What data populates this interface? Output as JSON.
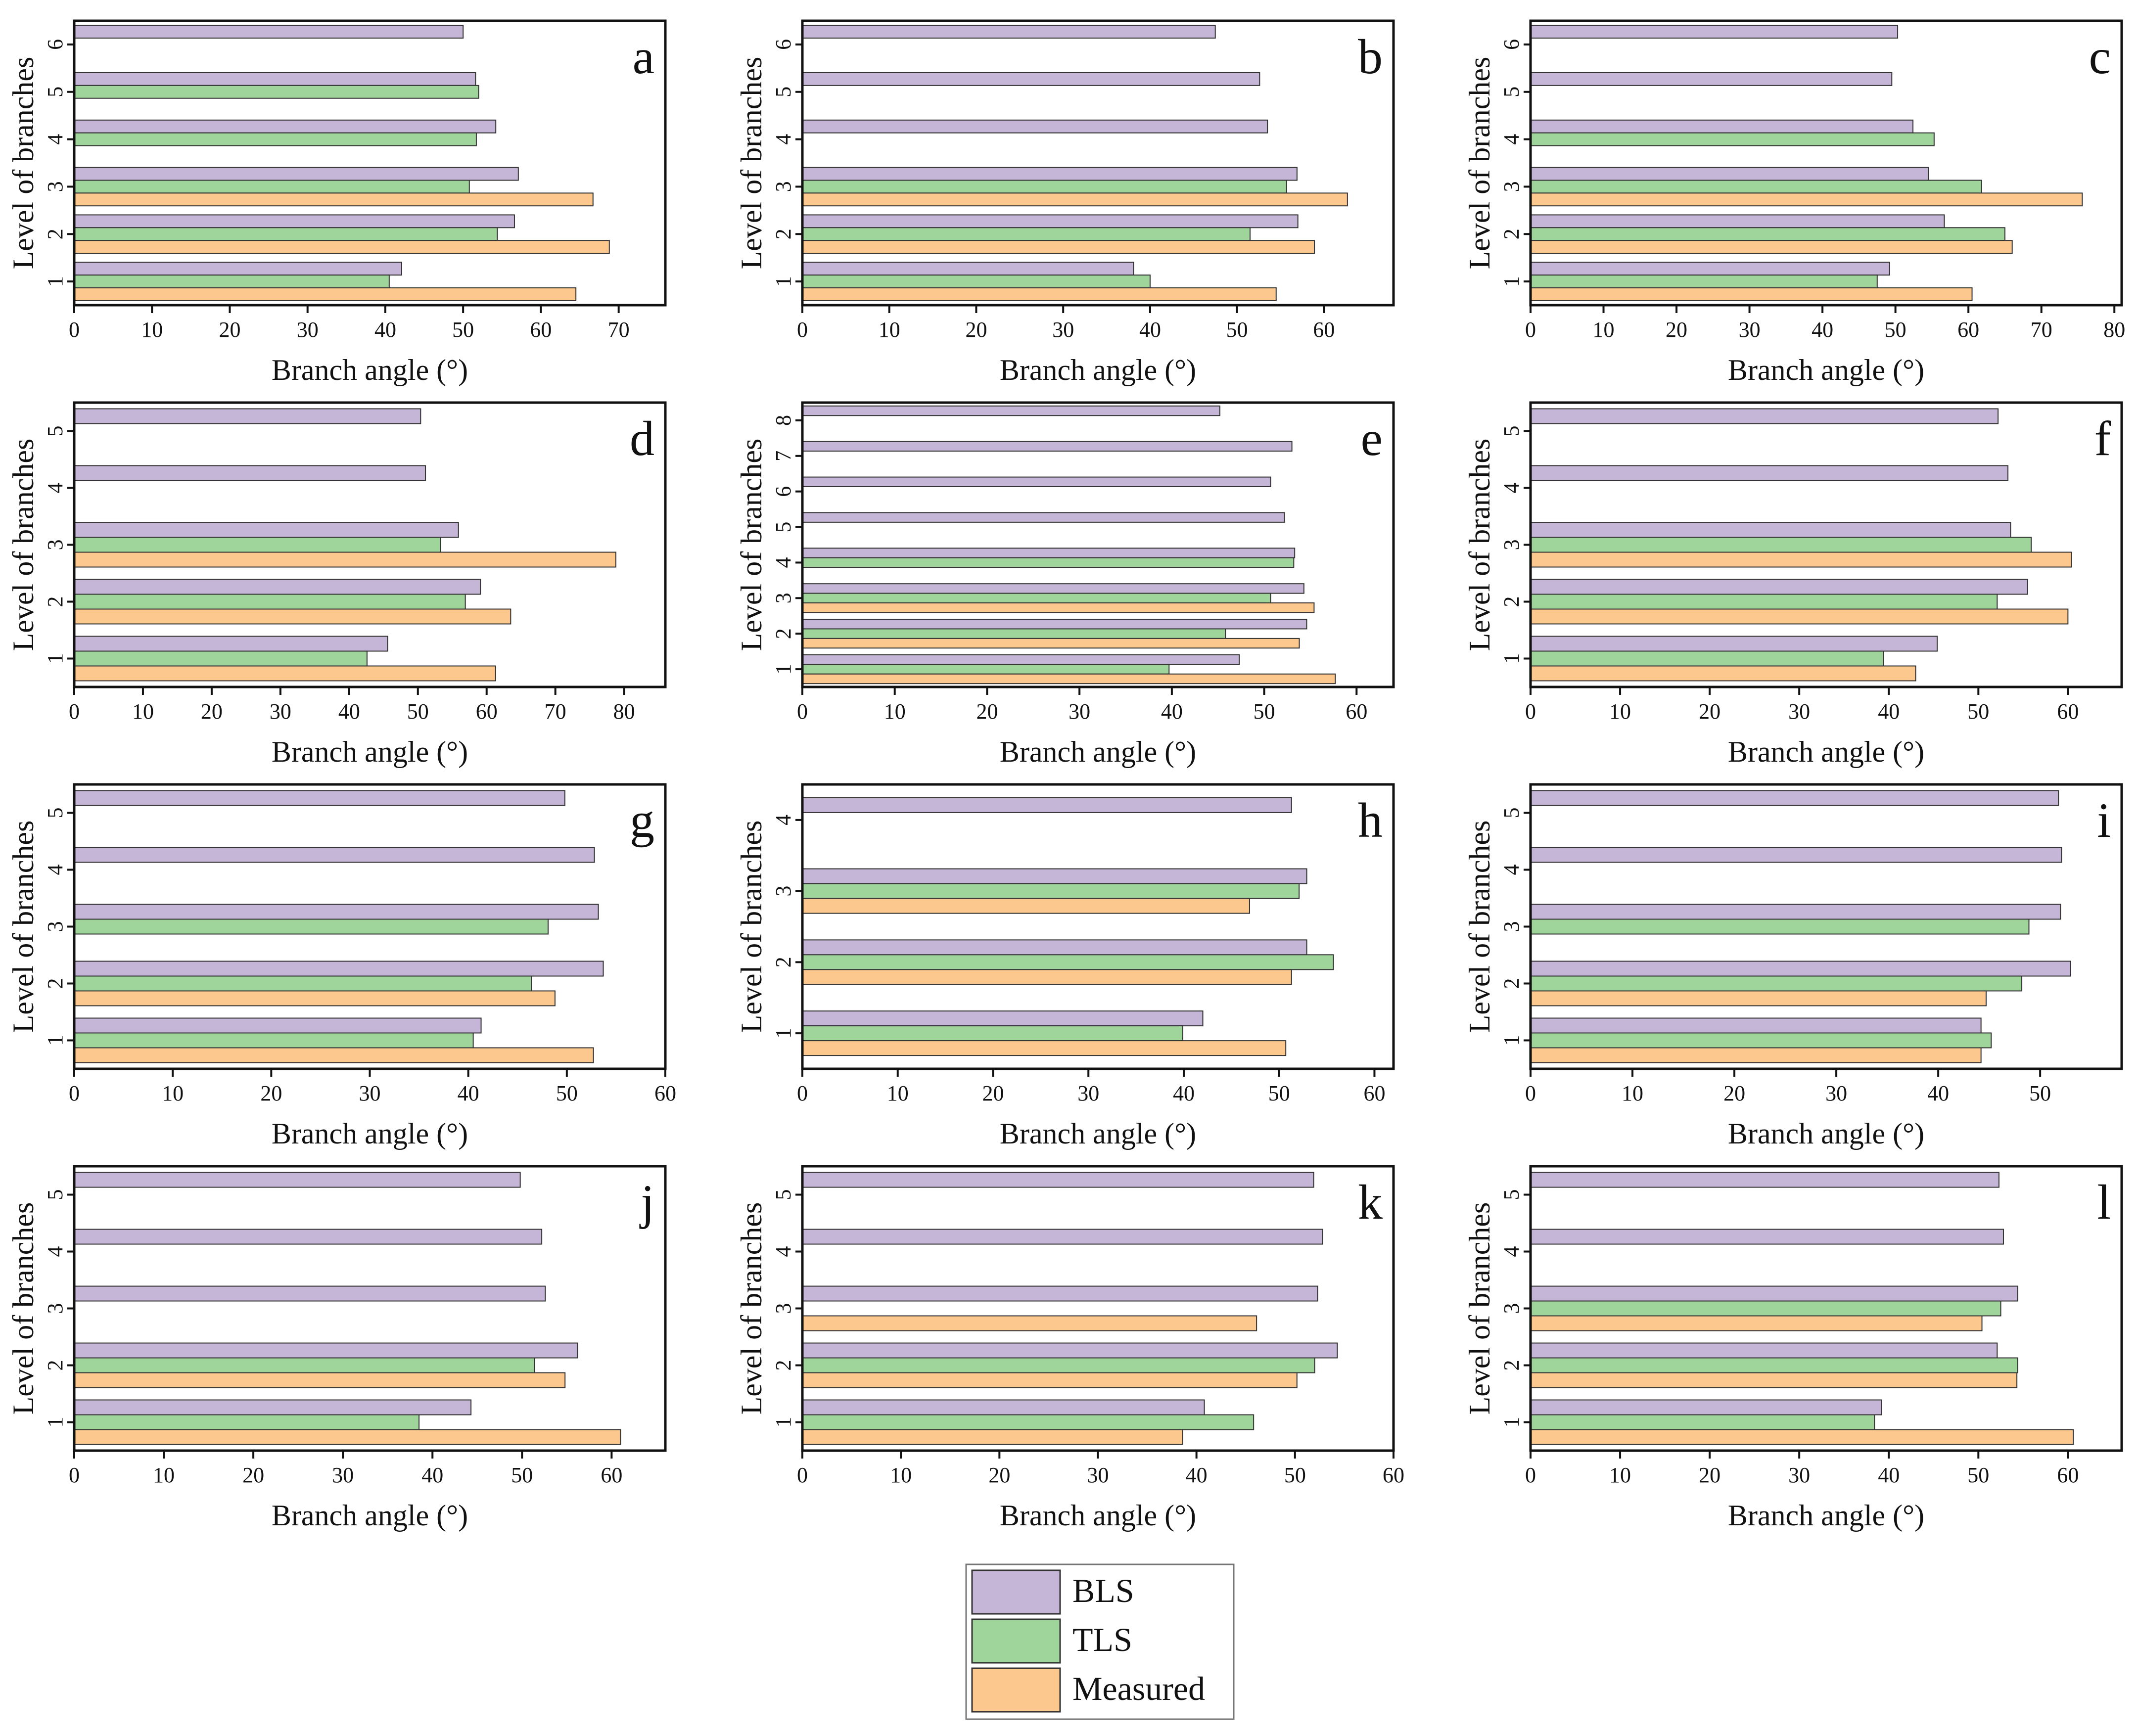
{
  "colors": {
    "BLS": "#c5b5d6",
    "TLS": "#9fd49b",
    "Measured": "#fcc88d",
    "axis": "#111111",
    "bar_edge": "#333333"
  },
  "legend": {
    "items": [
      {
        "key": "BLS",
        "label": "BLS"
      },
      {
        "key": "TLS",
        "label": "TLS"
      },
      {
        "key": "Measured",
        "label": "Measured"
      }
    ]
  },
  "chart_data": [
    {
      "type": "bar",
      "orientation": "horizontal",
      "panel": "a",
      "xlabel": "Branch angle (°)",
      "ylabel": "Level of branches",
      "xlim": [
        0,
        76
      ],
      "xticks": [
        0,
        10,
        20,
        30,
        40,
        50,
        60,
        70
      ],
      "categories": [
        "1",
        "2",
        "3",
        "4",
        "5",
        "6"
      ],
      "series": [
        {
          "name": "BLS",
          "values": [
            42.1,
            56.6,
            57.1,
            54.2,
            51.6,
            50.0
          ]
        },
        {
          "name": "TLS",
          "values": [
            40.5,
            54.4,
            50.8,
            51.7,
            52.0,
            null
          ]
        },
        {
          "name": "Measured",
          "values": [
            64.5,
            68.8,
            66.7,
            null,
            null,
            null
          ]
        }
      ]
    },
    {
      "type": "bar",
      "orientation": "horizontal",
      "panel": "b",
      "xlabel": "Branch angle (°)",
      "ylabel": "Level of branches",
      "xlim": [
        0,
        68
      ],
      "xticks": [
        0,
        10,
        20,
        30,
        40,
        50,
        60
      ],
      "categories": [
        "1",
        "2",
        "3",
        "4",
        "5",
        "6"
      ],
      "series": [
        {
          "name": "BLS",
          "values": [
            38.1,
            57.0,
            56.9,
            53.5,
            52.6,
            47.5
          ]
        },
        {
          "name": "TLS",
          "values": [
            40.0,
            51.5,
            55.7,
            null,
            null,
            null
          ]
        },
        {
          "name": "Measured",
          "values": [
            54.5,
            58.9,
            62.7,
            null,
            null,
            null
          ]
        }
      ]
    },
    {
      "type": "bar",
      "orientation": "horizontal",
      "panel": "c",
      "xlabel": "Branch angle (°)",
      "ylabel": "Level of branches",
      "xlim": [
        0,
        81
      ],
      "xticks": [
        0,
        10,
        20,
        30,
        40,
        50,
        60,
        70,
        80
      ],
      "categories": [
        "1",
        "2",
        "3",
        "4",
        "5",
        "6"
      ],
      "series": [
        {
          "name": "BLS",
          "values": [
            49.2,
            56.7,
            54.5,
            52.4,
            49.5,
            50.3
          ]
        },
        {
          "name": "TLS",
          "values": [
            47.5,
            65.0,
            61.8,
            55.3,
            null,
            null
          ]
        },
        {
          "name": "Measured",
          "values": [
            60.5,
            66.0,
            75.6,
            null,
            null,
            null
          ]
        }
      ]
    },
    {
      "type": "bar",
      "orientation": "horizontal",
      "panel": "d",
      "xlabel": "Branch angle (°)",
      "ylabel": "Level of branches",
      "xlim": [
        0,
        86
      ],
      "xticks": [
        0,
        10,
        20,
        30,
        40,
        50,
        60,
        70,
        80
      ],
      "categories": [
        "1",
        "2",
        "3",
        "4",
        "5"
      ],
      "series": [
        {
          "name": "BLS",
          "values": [
            45.6,
            59.1,
            55.9,
            51.1,
            50.4
          ]
        },
        {
          "name": "TLS",
          "values": [
            42.6,
            56.9,
            53.3,
            null,
            null
          ]
        },
        {
          "name": "Measured",
          "values": [
            61.3,
            63.5,
            78.8,
            null,
            null
          ]
        }
      ]
    },
    {
      "type": "bar",
      "orientation": "horizontal",
      "panel": "e",
      "xlabel": "Branch angle (°)",
      "ylabel": "Level of branches",
      "xlim": [
        0,
        64
      ],
      "xticks": [
        0,
        10,
        20,
        30,
        40,
        50,
        60
      ],
      "categories": [
        "1",
        "2",
        "3",
        "4",
        "5",
        "6",
        "7",
        "8"
      ],
      "series": [
        {
          "name": "BLS",
          "values": [
            47.3,
            54.6,
            54.3,
            53.3,
            52.2,
            50.7,
            53.0,
            45.2
          ]
        },
        {
          "name": "TLS",
          "values": [
            39.7,
            45.8,
            50.7,
            53.2,
            null,
            null,
            null,
            null
          ]
        },
        {
          "name": "Measured",
          "values": [
            57.7,
            53.8,
            55.4,
            null,
            null,
            null,
            null,
            null
          ]
        }
      ]
    },
    {
      "type": "bar",
      "orientation": "horizontal",
      "panel": "f",
      "xlabel": "Branch angle (°)",
      "ylabel": "Level of branches",
      "xlim": [
        0,
        66
      ],
      "xticks": [
        0,
        10,
        20,
        30,
        40,
        50,
        60
      ],
      "categories": [
        "1",
        "2",
        "3",
        "4",
        "5"
      ],
      "series": [
        {
          "name": "BLS",
          "values": [
            45.4,
            55.5,
            53.6,
            53.3,
            52.2
          ]
        },
        {
          "name": "TLS",
          "values": [
            39.4,
            52.1,
            55.9,
            null,
            null
          ]
        },
        {
          "name": "Measured",
          "values": [
            43.0,
            60.0,
            60.4,
            null,
            null
          ]
        }
      ]
    },
    {
      "type": "bar",
      "orientation": "horizontal",
      "panel": "g",
      "xlabel": "Branch angle (°)",
      "ylabel": "Level of branches",
      "xlim": [
        0,
        60
      ],
      "xticks": [
        0,
        10,
        20,
        30,
        40,
        50,
        60
      ],
      "categories": [
        "1",
        "2",
        "3",
        "4",
        "5"
      ],
      "series": [
        {
          "name": "BLS",
          "values": [
            41.3,
            53.7,
            53.2,
            52.8,
            49.8
          ]
        },
        {
          "name": "TLS",
          "values": [
            40.5,
            46.4,
            48.1,
            null,
            null
          ]
        },
        {
          "name": "Measured",
          "values": [
            52.7,
            48.8,
            null,
            null,
            null
          ]
        }
      ]
    },
    {
      "type": "bar",
      "orientation": "horizontal",
      "panel": "h",
      "xlabel": "Branch angle (°)",
      "ylabel": "Level of branches",
      "xlim": [
        0,
        62
      ],
      "xticks": [
        0,
        10,
        20,
        30,
        40,
        50,
        60
      ],
      "categories": [
        "1",
        "2",
        "3",
        "4"
      ],
      "series": [
        {
          "name": "BLS",
          "values": [
            42.0,
            52.9,
            52.9,
            51.3
          ]
        },
        {
          "name": "TLS",
          "values": [
            39.9,
            55.7,
            52.1,
            null
          ]
        },
        {
          "name": "Measured",
          "values": [
            50.7,
            51.3,
            46.9,
            null
          ]
        }
      ]
    },
    {
      "type": "bar",
      "orientation": "horizontal",
      "panel": "i",
      "xlabel": "Branch angle (°)",
      "ylabel": "Level of branches",
      "xlim": [
        0,
        58
      ],
      "xticks": [
        0,
        10,
        20,
        30,
        40,
        50
      ],
      "categories": [
        "1",
        "2",
        "3",
        "4",
        "5"
      ],
      "series": [
        {
          "name": "BLS",
          "values": [
            44.2,
            53.0,
            52.0,
            52.1,
            51.8
          ]
        },
        {
          "name": "TLS",
          "values": [
            45.2,
            48.2,
            48.9,
            null,
            null
          ]
        },
        {
          "name": "Measured",
          "values": [
            44.2,
            44.7,
            null,
            null,
            null
          ]
        }
      ]
    },
    {
      "type": "bar",
      "orientation": "horizontal",
      "panel": "j",
      "xlabel": "Branch angle (°)",
      "ylabel": "Level of branches",
      "xlim": [
        0,
        66
      ],
      "xticks": [
        0,
        10,
        20,
        30,
        40,
        50,
        60
      ],
      "categories": [
        "1",
        "2",
        "3",
        "4",
        "5"
      ],
      "series": [
        {
          "name": "BLS",
          "values": [
            44.3,
            56.2,
            52.6,
            52.2,
            49.8
          ]
        },
        {
          "name": "TLS",
          "values": [
            38.5,
            51.4,
            null,
            null,
            null
          ]
        },
        {
          "name": "Measured",
          "values": [
            61.0,
            54.8,
            null,
            null,
            null
          ]
        }
      ]
    },
    {
      "type": "bar",
      "orientation": "horizontal",
      "panel": "k",
      "xlabel": "Branch angle (°)",
      "ylabel": "Level of branches",
      "xlim": [
        0,
        60
      ],
      "xticks": [
        0,
        10,
        20,
        30,
        40,
        50,
        60
      ],
      "categories": [
        "1",
        "2",
        "3",
        "4",
        "5"
      ],
      "series": [
        {
          "name": "BLS",
          "values": [
            40.8,
            54.3,
            52.3,
            52.8,
            51.9
          ]
        },
        {
          "name": "TLS",
          "values": [
            45.8,
            52.0,
            null,
            null,
            null
          ]
        },
        {
          "name": "Measured",
          "values": [
            38.6,
            50.2,
            46.1,
            null,
            null
          ]
        }
      ]
    },
    {
      "type": "bar",
      "orientation": "horizontal",
      "panel": "l",
      "xlabel": "Branch angle (°)",
      "ylabel": "Level of branches",
      "xlim": [
        0,
        66
      ],
      "xticks": [
        0,
        10,
        20,
        30,
        40,
        50,
        60
      ],
      "categories": [
        "1",
        "2",
        "3",
        "4",
        "5"
      ],
      "series": [
        {
          "name": "BLS",
          "values": [
            39.2,
            52.1,
            54.4,
            52.8,
            52.3
          ]
        },
        {
          "name": "TLS",
          "values": [
            38.4,
            54.4,
            52.5,
            null,
            null
          ]
        },
        {
          "name": "Measured",
          "values": [
            60.6,
            54.3,
            50.4,
            null,
            null
          ]
        }
      ]
    }
  ]
}
